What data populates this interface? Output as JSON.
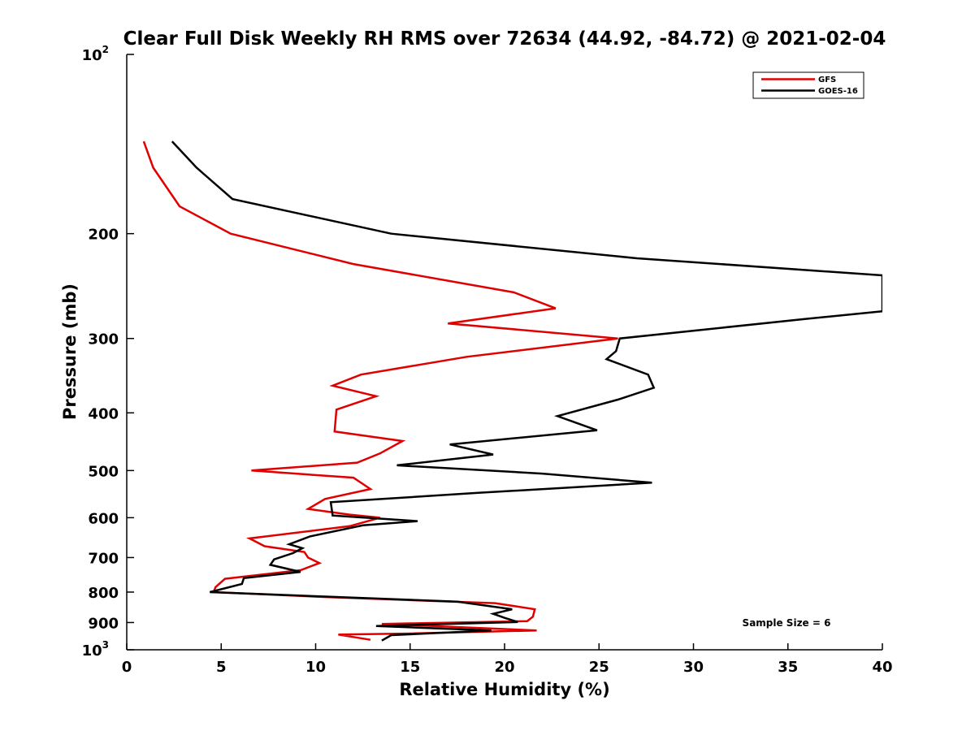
{
  "chart_data": {
    "type": "line",
    "title": "Clear Full Disk Weekly RH RMS over 72634 (44.92, -84.72) @ 2021-02-04",
    "xlabel": "Relative Humidity (%)",
    "ylabel": "Pressure (mb)",
    "xlim": [
      0,
      40
    ],
    "ylim": [
      100,
      1000
    ],
    "y_scale": "log",
    "y_reversed": true,
    "x_ticks": [
      "0",
      "5",
      "10",
      "15",
      "20",
      "25",
      "30",
      "35",
      "40"
    ],
    "y_ticks": [
      {
        "value": 100,
        "base": "10",
        "exp": "2"
      },
      {
        "value": 200,
        "label": "200"
      },
      {
        "value": 300,
        "label": "300"
      },
      {
        "value": 400,
        "label": "400"
      },
      {
        "value": 500,
        "label": "500"
      },
      {
        "value": 600,
        "label": "600"
      },
      {
        "value": 700,
        "label": "700"
      },
      {
        "value": 800,
        "label": "800"
      },
      {
        "value": 900,
        "label": "900"
      },
      {
        "value": 1000,
        "base": "10",
        "exp": "3"
      }
    ],
    "legend_position": "top-right",
    "annotation": "Sample Size = 6",
    "series": [
      {
        "name": "GFS",
        "color": "#e00000",
        "points": [
          [
            0.9,
            140
          ],
          [
            1.4,
            155
          ],
          [
            2.8,
            180
          ],
          [
            5.5,
            200
          ],
          [
            12,
            225
          ],
          [
            20.5,
            251
          ],
          [
            22.7,
            267
          ],
          [
            17,
            283
          ],
          [
            26,
            300
          ],
          [
            18,
            322
          ],
          [
            12.4,
            345
          ],
          [
            10.9,
            360
          ],
          [
            13.2,
            375
          ],
          [
            11.1,
            395
          ],
          [
            11,
            430
          ],
          [
            14.6,
            446
          ],
          [
            13.4,
            468
          ],
          [
            12.2,
            485
          ],
          [
            6.6,
            500
          ],
          [
            12,
            514
          ],
          [
            12.9,
            537
          ],
          [
            10.5,
            558
          ],
          [
            9.6,
            580
          ],
          [
            11.8,
            593
          ],
          [
            13.4,
            600
          ],
          [
            11.8,
            620
          ],
          [
            6.5,
            650
          ],
          [
            7.3,
            670
          ],
          [
            9.4,
            685
          ],
          [
            9.6,
            700
          ],
          [
            10.2,
            715
          ],
          [
            9.2,
            735
          ],
          [
            5.2,
            760
          ],
          [
            4.7,
            785
          ],
          [
            4.6,
            800
          ],
          [
            10.3,
            815
          ],
          [
            19.5,
            835
          ],
          [
            21.6,
            855
          ],
          [
            21.5,
            880
          ],
          [
            21.2,
            895
          ],
          [
            13.5,
            905
          ],
          [
            21.7,
            928
          ],
          [
            15,
            939
          ],
          [
            11.2,
            943
          ],
          [
            12.9,
            962
          ]
        ]
      },
      {
        "name": "GOES-16",
        "color": "#000000",
        "points": [
          [
            2.4,
            140
          ],
          [
            3.7,
            155
          ],
          [
            5.6,
            175
          ],
          [
            14,
            200
          ],
          [
            27,
            220
          ],
          [
            40,
            235
          ],
          [
            40,
            270
          ],
          [
            36,
            278
          ],
          [
            26.1,
            300
          ],
          [
            25.9,
            315
          ],
          [
            25.4,
            325
          ],
          [
            27.6,
            345
          ],
          [
            27.9,
            363
          ],
          [
            26,
            380
          ],
          [
            22.8,
            405
          ],
          [
            24.9,
            428
          ],
          [
            17.1,
            452
          ],
          [
            19.4,
            470
          ],
          [
            14.3,
            490
          ],
          [
            22,
            506
          ],
          [
            27.8,
            524
          ],
          [
            18.6,
            545
          ],
          [
            10.8,
            565
          ],
          [
            10.9,
            595
          ],
          [
            15.4,
            608
          ],
          [
            12.5,
            618
          ],
          [
            9.7,
            645
          ],
          [
            8.6,
            665
          ],
          [
            9.3,
            675
          ],
          [
            8.8,
            688
          ],
          [
            7.8,
            705
          ],
          [
            7.6,
            720
          ],
          [
            9.2,
            740
          ],
          [
            6.2,
            758
          ],
          [
            6.1,
            775
          ],
          [
            4.4,
            800
          ],
          [
            17.5,
            830
          ],
          [
            20.4,
            855
          ],
          [
            19.4,
            870
          ],
          [
            20,
            884
          ],
          [
            20.7,
            898
          ],
          [
            13.2,
            912
          ],
          [
            19.3,
            928
          ],
          [
            14,
            945
          ],
          [
            13.5,
            965
          ]
        ]
      }
    ]
  }
}
